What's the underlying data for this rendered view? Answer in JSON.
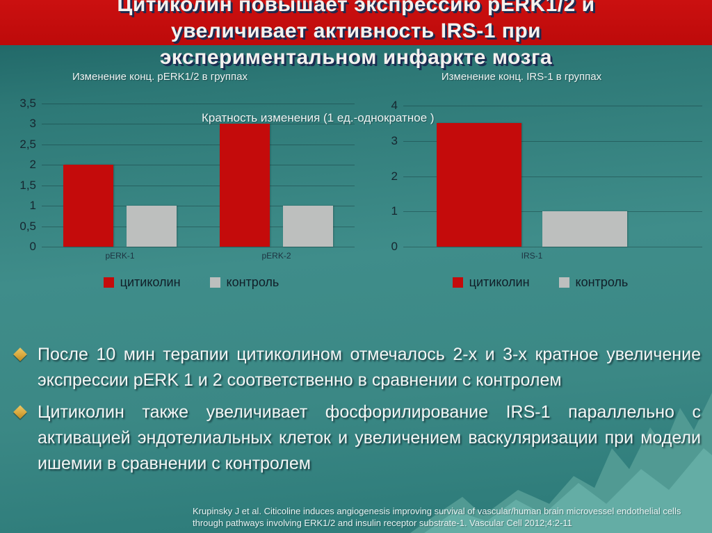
{
  "slide": {
    "title_lines": [
      "Цитиколин повышает экспрессию pERK1/2 и",
      "увеличивает активность IRS-1 при",
      "экспериментальном инфаркте мозга"
    ],
    "annotation": "Кратность изменения (1 ед.-однократное )",
    "bullets": [
      "После 10 мин терапии цитиколином отмечалось 2-х и 3-х кратное увеличение экспрессии pERK 1 и 2 соответственно в сравнении с контролем",
      "Цитиколин также увеличивает фосфорилирование IRS-1 параллельно с активацией эндотелиальных клеток и увеличением васкуляризации при модели ишемии в сравнении с контролем"
    ],
    "citation": "Krupinsky J et al. Citicoline induces angiogenesis improving survival of vascular/human brain microvessel endothelial cells through pathways involving ERK1/2 and insulin receptor substrate-1. Vascular Cell 2012;4:2-11",
    "bullet_icon": "diamond"
  },
  "colors": {
    "banner_red": "#c30d0d",
    "citicoline_red": "#c40b0b",
    "control_gray": "#bdbfbe",
    "bullet_gold": "#d9a93e",
    "background_teal": "#3f8d8a",
    "mountain_teal_front": "#64ada5",
    "mountain_teal_back": "#519a93"
  },
  "chart_data": [
    {
      "type": "bar",
      "title": "Изменение  конц. pERK1/2 в группах",
      "categories": [
        "pERK-1",
        "pERK-2"
      ],
      "series": [
        {
          "name": "цитиколин",
          "color": "#c40b0b",
          "values": [
            2,
            3
          ]
        },
        {
          "name": "контроль",
          "color": "#bdbfbe",
          "values": [
            1,
            1
          ]
        }
      ],
      "ylim": [
        0,
        3.5
      ],
      "ytick_step": 0.5,
      "ytick_labels": [
        "0",
        "0,5",
        "1",
        "1,5",
        "2",
        "2,5",
        "3",
        "3,5"
      ],
      "grid": true,
      "legend_position": "bottom"
    },
    {
      "type": "bar",
      "title": "Изменение  конц. IRS-1 в группах",
      "categories": [
        "IRS-1"
      ],
      "series": [
        {
          "name": "цитиколин",
          "color": "#c40b0b",
          "values": [
            3.5
          ]
        },
        {
          "name": "контроль",
          "color": "#bdbfbe",
          "values": [
            1
          ]
        }
      ],
      "ylim": [
        0,
        4
      ],
      "ytick_step": 1,
      "ytick_labels": [
        "0",
        "1",
        "2",
        "3",
        "4"
      ],
      "grid": true,
      "legend_position": "bottom"
    }
  ]
}
